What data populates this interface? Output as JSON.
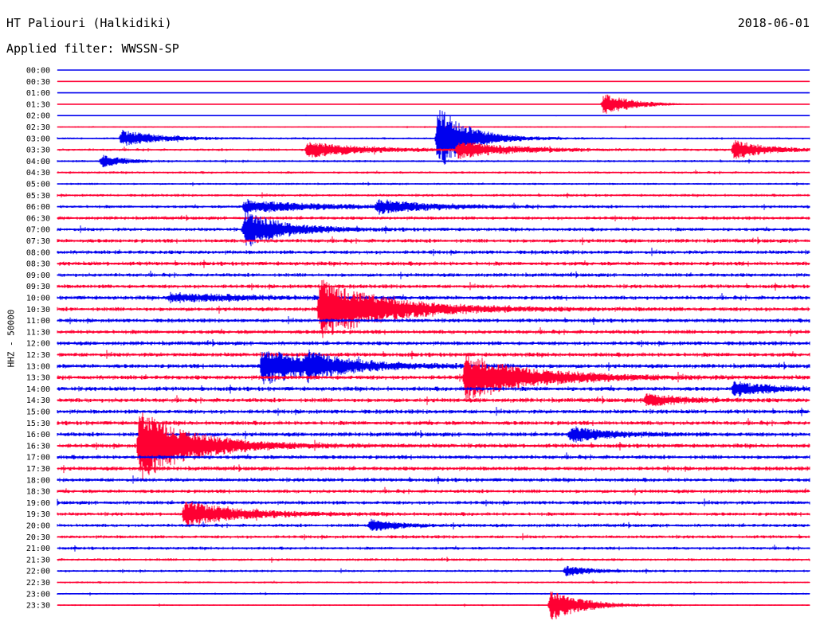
{
  "header": {
    "station": "HT Paliouri (Halkidiki)",
    "date": "2018-06-01",
    "filter": "Applied filter: WWSSN-SP"
  },
  "chart_data": {
    "type": "line",
    "ylabel": "HHZ - 50000",
    "rows": [
      "00:00",
      "00:30",
      "01:00",
      "01:30",
      "02:00",
      "02:30",
      "03:00",
      "03:30",
      "04:00",
      "04:30",
      "05:00",
      "05:30",
      "06:00",
      "06:30",
      "07:00",
      "07:30",
      "08:00",
      "08:30",
      "09:00",
      "09:30",
      "10:00",
      "10:30",
      "11:00",
      "11:30",
      "12:00",
      "12:30",
      "13:00",
      "13:30",
      "14:00",
      "14:30",
      "15:00",
      "15:30",
      "16:00",
      "16:30",
      "17:00",
      "17:30",
      "18:00",
      "18:30",
      "19:00",
      "19:30",
      "20:00",
      "20:30",
      "21:00",
      "21:30",
      "22:00",
      "22:30",
      "23:00",
      "23:30"
    ],
    "colors": [
      "#0000ee",
      "#ff0033"
    ],
    "noise_level": [
      0.2,
      0.3,
      0.3,
      0.3,
      0.4,
      0.8,
      1.2,
      1.5,
      1.3,
      1.4,
      1.2,
      1.6,
      1.8,
      2.0,
      2.1,
      2.3,
      2.3,
      2.4,
      2.2,
      2.3,
      2.4,
      2.4,
      2.3,
      2.4,
      2.4,
      2.5,
      2.5,
      2.6,
      2.6,
      2.6,
      2.5,
      2.5,
      2.5,
      2.5,
      2.4,
      2.4,
      2.3,
      2.2,
      2.2,
      2.1,
      2.0,
      1.9,
      1.8,
      1.6,
      1.4,
      1.2,
      1.0,
      0.9
    ],
    "events": [
      {
        "row": 3,
        "minute": 21.8,
        "amp": 14,
        "dur": 1.2
      },
      {
        "row": 6,
        "minute": 2.6,
        "amp": 10,
        "dur": 1.4
      },
      {
        "row": 6,
        "minute": 15.2,
        "amp": 40,
        "dur": 1.2
      },
      {
        "row": 7,
        "minute": 10.0,
        "amp": 10,
        "dur": 2.0
      },
      {
        "row": 7,
        "minute": 16.0,
        "amp": 10,
        "dur": 2.0
      },
      {
        "row": 7,
        "minute": 27.0,
        "amp": 12,
        "dur": 1.2
      },
      {
        "row": 8,
        "minute": 1.8,
        "amp": 8,
        "dur": 0.8
      },
      {
        "row": 12,
        "minute": 7.5,
        "amp": 8,
        "dur": 2.5
      },
      {
        "row": 12,
        "minute": 12.8,
        "amp": 8,
        "dur": 2.0
      },
      {
        "row": 14,
        "minute": 7.5,
        "amp": 22,
        "dur": 1.5
      },
      {
        "row": 20,
        "minute": 4.5,
        "amp": 5,
        "dur": 3.0
      },
      {
        "row": 21,
        "minute": 10.5,
        "amp": 38,
        "dur": 2.5
      },
      {
        "row": 26,
        "minute": 8.2,
        "amp": 22,
        "dur": 2.5
      },
      {
        "row": 26,
        "minute": 10.0,
        "amp": 10,
        "dur": 1.0
      },
      {
        "row": 27,
        "minute": 16.3,
        "amp": 28,
        "dur": 2.5
      },
      {
        "row": 28,
        "minute": 27.0,
        "amp": 8,
        "dur": 1.5
      },
      {
        "row": 29,
        "minute": 23.5,
        "amp": 8,
        "dur": 1.2
      },
      {
        "row": 32,
        "minute": 20.5,
        "amp": 9,
        "dur": 1.5
      },
      {
        "row": 33,
        "minute": 3.3,
        "amp": 45,
        "dur": 2.0
      },
      {
        "row": 39,
        "minute": 5.1,
        "amp": 16,
        "dur": 2.0
      },
      {
        "row": 40,
        "minute": 12.5,
        "amp": 8,
        "dur": 1.0
      },
      {
        "row": 44,
        "minute": 20.3,
        "amp": 6,
        "dur": 1.0
      },
      {
        "row": 47,
        "minute": 19.7,
        "amp": 20,
        "dur": 1.2
      }
    ]
  }
}
